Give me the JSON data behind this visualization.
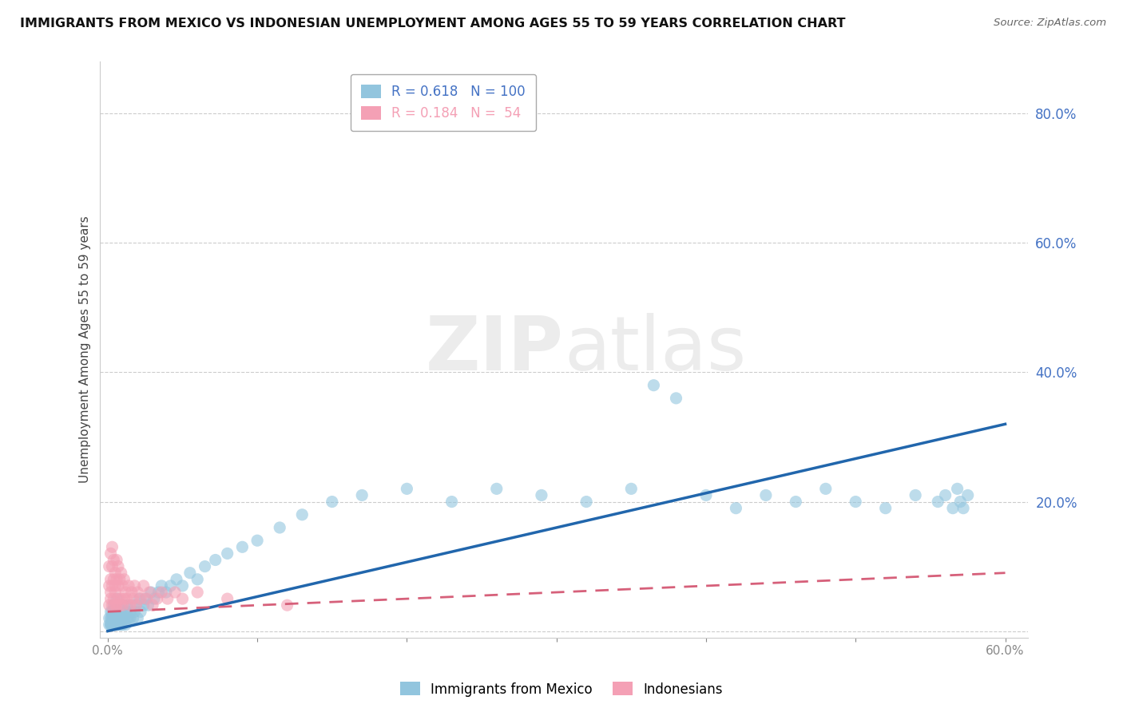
{
  "title": "IMMIGRANTS FROM MEXICO VS INDONESIAN UNEMPLOYMENT AMONG AGES 55 TO 59 YEARS CORRELATION CHART",
  "source": "Source: ZipAtlas.com",
  "ylabel_label": "Unemployment Among Ages 55 to 59 years",
  "legend_label1": "Immigrants from Mexico",
  "legend_label2": "Indonesians",
  "R1": 0.618,
  "N1": 100,
  "R2": 0.184,
  "N2": 54,
  "xlim": [
    -0.005,
    0.615
  ],
  "ylim": [
    -0.01,
    0.88
  ],
  "color1": "#92c5de",
  "color2": "#f4a0b5",
  "line1_color": "#2166ac",
  "line2_color": "#d6607a",
  "watermark_color": "#ececec",
  "axis_label_color": "#4472c4",
  "tick_color": "#888888",
  "grid_color": "#cccccc",
  "mexico_x": [
    0.001,
    0.001,
    0.002,
    0.002,
    0.002,
    0.002,
    0.003,
    0.003,
    0.003,
    0.003,
    0.003,
    0.004,
    0.004,
    0.004,
    0.004,
    0.004,
    0.005,
    0.005,
    0.005,
    0.005,
    0.005,
    0.005,
    0.006,
    0.006,
    0.006,
    0.006,
    0.007,
    0.007,
    0.007,
    0.007,
    0.008,
    0.008,
    0.008,
    0.009,
    0.009,
    0.009,
    0.01,
    0.01,
    0.01,
    0.011,
    0.011,
    0.012,
    0.012,
    0.013,
    0.013,
    0.014,
    0.015,
    0.015,
    0.016,
    0.017,
    0.018,
    0.019,
    0.02,
    0.021,
    0.022,
    0.024,
    0.025,
    0.027,
    0.029,
    0.031,
    0.034,
    0.036,
    0.039,
    0.042,
    0.046,
    0.05,
    0.055,
    0.06,
    0.065,
    0.072,
    0.08,
    0.09,
    0.1,
    0.115,
    0.13,
    0.15,
    0.17,
    0.2,
    0.23,
    0.26,
    0.29,
    0.32,
    0.35,
    0.365,
    0.38,
    0.4,
    0.42,
    0.44,
    0.46,
    0.48,
    0.5,
    0.52,
    0.54,
    0.555,
    0.56,
    0.565,
    0.568,
    0.57,
    0.572,
    0.575
  ],
  "mexico_y": [
    0.01,
    0.02,
    0.01,
    0.02,
    0.03,
    0.01,
    0.01,
    0.02,
    0.03,
    0.01,
    0.02,
    0.01,
    0.02,
    0.03,
    0.01,
    0.04,
    0.01,
    0.02,
    0.03,
    0.01,
    0.02,
    0.04,
    0.01,
    0.02,
    0.03,
    0.05,
    0.01,
    0.02,
    0.04,
    0.02,
    0.01,
    0.03,
    0.02,
    0.01,
    0.03,
    0.02,
    0.01,
    0.02,
    0.04,
    0.02,
    0.03,
    0.01,
    0.03,
    0.02,
    0.04,
    0.02,
    0.03,
    0.02,
    0.04,
    0.02,
    0.03,
    0.04,
    0.02,
    0.05,
    0.03,
    0.04,
    0.05,
    0.04,
    0.06,
    0.05,
    0.06,
    0.07,
    0.06,
    0.07,
    0.08,
    0.07,
    0.09,
    0.08,
    0.1,
    0.11,
    0.12,
    0.13,
    0.14,
    0.16,
    0.18,
    0.2,
    0.21,
    0.22,
    0.2,
    0.22,
    0.21,
    0.2,
    0.22,
    0.38,
    0.36,
    0.21,
    0.19,
    0.21,
    0.2,
    0.22,
    0.2,
    0.19,
    0.21,
    0.2,
    0.21,
    0.19,
    0.22,
    0.2,
    0.19,
    0.21
  ],
  "indonesia_x": [
    0.001,
    0.001,
    0.001,
    0.002,
    0.002,
    0.002,
    0.002,
    0.003,
    0.003,
    0.003,
    0.003,
    0.004,
    0.004,
    0.004,
    0.005,
    0.005,
    0.005,
    0.005,
    0.006,
    0.006,
    0.006,
    0.007,
    0.007,
    0.007,
    0.008,
    0.008,
    0.009,
    0.009,
    0.01,
    0.01,
    0.011,
    0.011,
    0.012,
    0.013,
    0.014,
    0.015,
    0.016,
    0.017,
    0.018,
    0.019,
    0.02,
    0.022,
    0.024,
    0.026,
    0.028,
    0.03,
    0.033,
    0.036,
    0.04,
    0.045,
    0.05,
    0.06,
    0.08,
    0.12
  ],
  "indonesia_y": [
    0.04,
    0.07,
    0.1,
    0.05,
    0.08,
    0.12,
    0.06,
    0.04,
    0.07,
    0.1,
    0.13,
    0.05,
    0.08,
    0.11,
    0.04,
    0.07,
    0.09,
    0.06,
    0.04,
    0.08,
    0.11,
    0.05,
    0.07,
    0.1,
    0.04,
    0.08,
    0.05,
    0.09,
    0.04,
    0.07,
    0.05,
    0.08,
    0.06,
    0.05,
    0.07,
    0.04,
    0.06,
    0.05,
    0.07,
    0.04,
    0.06,
    0.05,
    0.07,
    0.05,
    0.06,
    0.04,
    0.05,
    0.06,
    0.05,
    0.06,
    0.05,
    0.06,
    0.05,
    0.04
  ],
  "line1_x0": 0.0,
  "line1_y0": 0.0,
  "line1_x1": 0.6,
  "line1_y1": 0.32,
  "line2_x0": 0.0,
  "line2_y0": 0.03,
  "line2_x1": 0.6,
  "line2_y1": 0.09,
  "ytick_positions": [
    0.0,
    0.2,
    0.4,
    0.6,
    0.8
  ],
  "ytick_labels": [
    "",
    "20.0%",
    "40.0%",
    "60.0%",
    "80.0%"
  ],
  "xtick_positions": [
    0.0,
    0.1,
    0.2,
    0.3,
    0.4,
    0.5,
    0.6
  ],
  "xtick_labels": [
    "0.0%",
    "",
    "",
    "",
    "",
    "",
    "60.0%"
  ]
}
